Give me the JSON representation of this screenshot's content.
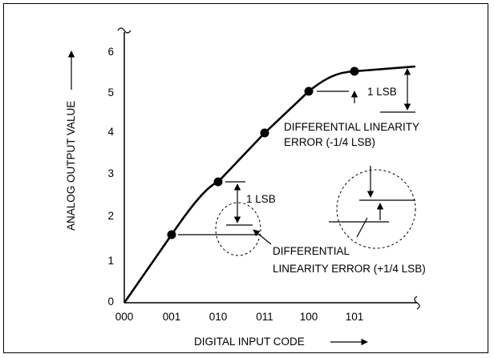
{
  "diagram": {
    "y_axis_label": "ANALOG OUTPUT VALUE",
    "x_axis_label": "DIGITAL INPUT CODE",
    "y_ticks": [
      "0",
      "1",
      "2",
      "3",
      "4",
      "5",
      "6"
    ],
    "x_ticks": [
      "000",
      "001",
      "010",
      "011",
      "100",
      "101"
    ],
    "annotations": {
      "lsb_upper": "1 LSB",
      "lsb_lower": "1 LSB",
      "dnl_neg_line1": "DIFFERENTIAL LINEARITY",
      "dnl_neg_line2": "ERROR (-1/4 LSB)",
      "dnl_pos_line1": "DIFFERENTIAL",
      "dnl_pos_line2": "LINEARITY ERROR (+1/4 LSB)"
    }
  },
  "chart_data": {
    "type": "line",
    "x": [
      "000",
      "001",
      "010",
      "011",
      "100",
      "101"
    ],
    "y": [
      0,
      1.5,
      2.75,
      4,
      5,
      5.5
    ],
    "markers_at": [
      "001",
      "010",
      "011",
      "100",
      "101"
    ],
    "xlabel": "DIGITAL INPUT CODE",
    "ylabel": "ANALOG OUTPUT VALUE",
    "ylim": [
      0,
      6
    ]
  }
}
